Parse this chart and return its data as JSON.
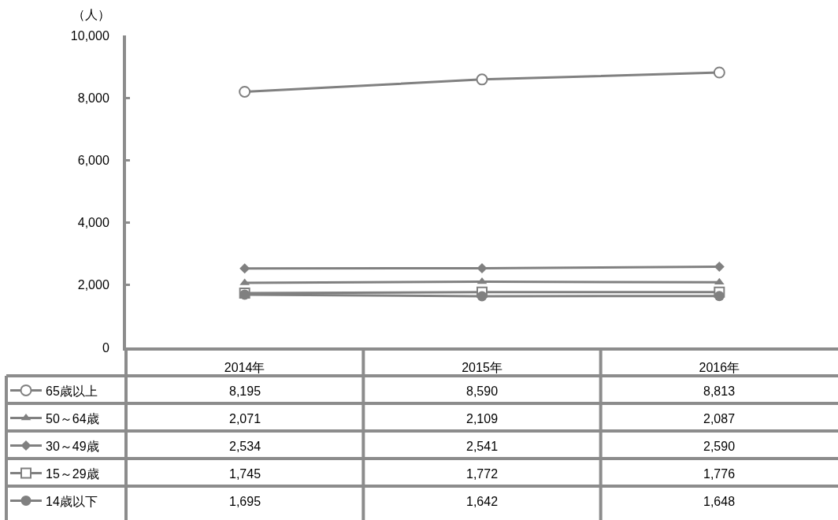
{
  "chart_data": {
    "type": "line",
    "ylabel": "（人）",
    "categories": [
      "2014年",
      "2015年",
      "2016年"
    ],
    "series": [
      {
        "name": "65歳以上",
        "color": "#808080",
        "marker": "circle-open",
        "values": [
          8195,
          8590,
          8813
        ],
        "value_labels": [
          "8,195",
          "8,590",
          "8,813"
        ]
      },
      {
        "name": "50～64歳",
        "color": "#808080",
        "marker": "triangle",
        "values": [
          2071,
          2109,
          2087
        ],
        "value_labels": [
          "2,071",
          "2,109",
          "2,087"
        ]
      },
      {
        "name": "30～49歳",
        "color": "#808080",
        "marker": "diamond",
        "values": [
          2534,
          2541,
          2590
        ],
        "value_labels": [
          "2,534",
          "2,541",
          "2,590"
        ]
      },
      {
        "name": "15～29歳",
        "color": "#808080",
        "marker": "square-open",
        "values": [
          1745,
          1772,
          1776
        ],
        "value_labels": [
          "1,745",
          "1,772",
          "1,776"
        ]
      },
      {
        "name": "14歳以下",
        "color": "#808080",
        "marker": "circle",
        "values": [
          1695,
          1642,
          1648
        ],
        "value_labels": [
          "1,695",
          "1,642",
          "1,648"
        ]
      }
    ],
    "ylim": [
      0,
      10000
    ],
    "yticks": [
      0,
      {
        "value": 2000,
        "label": "2,000"
      },
      {
        "value": 4000,
        "label": "4,000"
      },
      {
        "value": 6000,
        "label": "6,000"
      },
      {
        "value": 8000,
        "label": "8,000"
      },
      {
        "value": 10000,
        "label": "10,000"
      }
    ],
    "grid": false,
    "legend": "bottom left",
    "line_style": "solid"
  }
}
